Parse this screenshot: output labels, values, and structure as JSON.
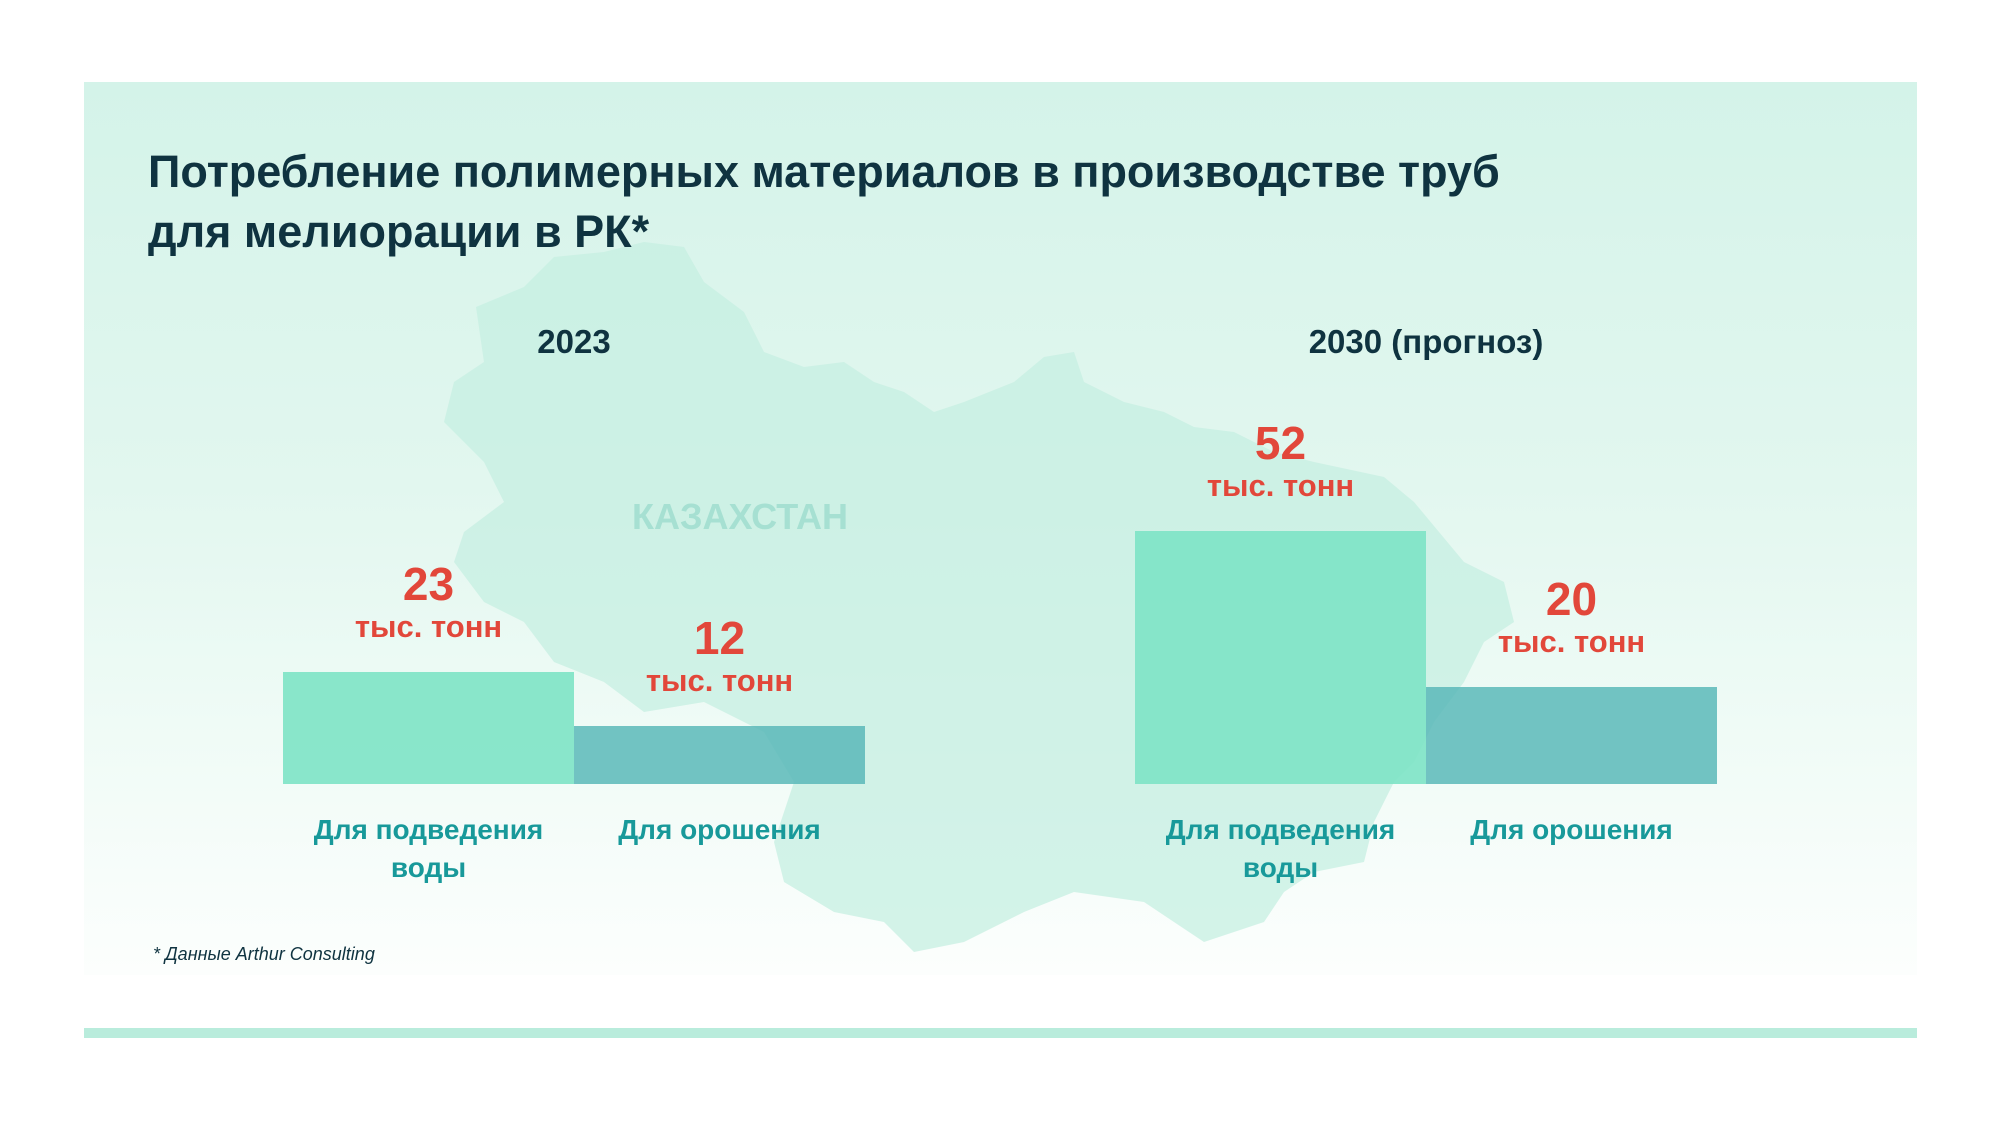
{
  "title": "Потребление полимерных материалов в производстве труб для мелиорации в РК*",
  "title_lines": [
    "Потребление полимерных материалов в производстве труб",
    "для мелиорации в РК*"
  ],
  "map_label": "КАЗАХСТАН",
  "footnote": "* Данные Arthur Consulting",
  "colors": {
    "water_supply": "#7de3c5",
    "irrigation": "#5bb8b8",
    "value_text": "#e2473a",
    "category_text": "#18999a"
  },
  "chart_data": {
    "type": "bar",
    "title": "Потребление полимерных материалов в производстве труб для мелиорации в РК*",
    "unit": "тыс. тонн",
    "groups": [
      {
        "label": "2023",
        "bars": [
          {
            "category": "Для подведения воды",
            "category_lines": [
              "Для подведения",
              "воды"
            ],
            "value": 23,
            "value_label": "23",
            "unit_label": "тыс. тонн"
          },
          {
            "category": "Для орошения",
            "category_lines": [
              "Для орошения"
            ],
            "value": 12,
            "value_label": "12",
            "unit_label": "тыс. тонн"
          }
        ]
      },
      {
        "label": "2030 (прогноз)",
        "bars": [
          {
            "category": "Для подведения воды",
            "category_lines": [
              "Для подведения",
              "воды"
            ],
            "value": 52,
            "value_label": "52",
            "unit_label": "тыс. тонн"
          },
          {
            "category": "Для орошения",
            "category_lines": [
              "Для орошения"
            ],
            "value": 20,
            "value_label": "20",
            "unit_label": "тыс. тонн"
          }
        ]
      }
    ],
    "ylim": [
      0,
      52
    ],
    "grid": false
  }
}
